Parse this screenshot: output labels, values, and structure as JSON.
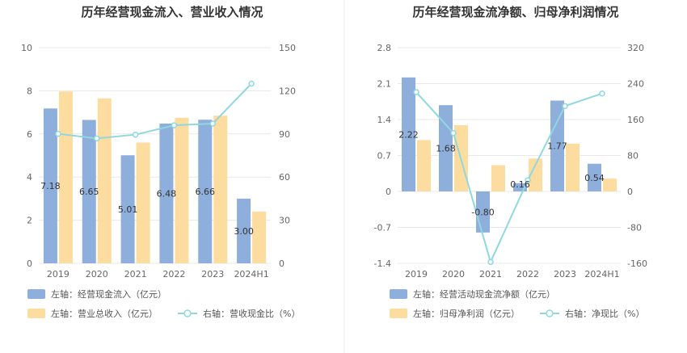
{
  "colors": {
    "bar1": "#8eaedc",
    "bar2": "#fddca0",
    "line": "#8fd8df",
    "grid": "#e8e8e8",
    "divider": "#eeeeee"
  },
  "chart_data": [
    {
      "type": "bar",
      "title": "历年经营现金流入、营业收入情况",
      "categories": [
        "2019",
        "2020",
        "2021",
        "2022",
        "2023",
        "2024H1"
      ],
      "left_axis": {
        "ticks": [
          "0",
          "2",
          "4",
          "6",
          "8",
          "10"
        ],
        "ylim": [
          0,
          10
        ]
      },
      "right_axis": {
        "ticks": [
          "0",
          "30",
          "60",
          "90",
          "120",
          "150"
        ],
        "ylim": [
          0,
          150
        ]
      },
      "series": [
        {
          "name": "左轴：经营现金流入（亿元）",
          "type": "bar",
          "axis": "left",
          "values": [
            7.18,
            6.65,
            5.01,
            6.48,
            6.66,
            3.0
          ],
          "labels": [
            "7.18",
            "6.65",
            "5.01",
            "6.48",
            "6.66",
            "3.00"
          ]
        },
        {
          "name": "左轴：营业总收入（亿元）",
          "type": "bar",
          "axis": "left",
          "values": [
            7.97,
            7.65,
            5.6,
            6.75,
            6.85,
            2.4
          ]
        },
        {
          "name": "右轴：营收现金比（%）",
          "type": "line",
          "axis": "right",
          "values": [
            90.1,
            86.9,
            89.5,
            96.0,
            97.2,
            125.0
          ]
        }
      ],
      "legend": "bottom-left"
    },
    {
      "type": "bar",
      "title": "历年经营现金流净额、归母净利润情况",
      "categories": [
        "2019",
        "2020",
        "2021",
        "2022",
        "2023",
        "2024H1"
      ],
      "left_axis": {
        "ticks": [
          "-1.4",
          "-0.7",
          "0",
          "0.7",
          "1.4",
          "2.1",
          "2.8"
        ],
        "ylim": [
          -1.4,
          2.8
        ]
      },
      "right_axis": {
        "ticks": [
          "-160",
          "-80",
          "0",
          "80",
          "160",
          "240",
          "320"
        ],
        "ylim": [
          -160,
          320
        ]
      },
      "series": [
        {
          "name": "左轴：经营活动现金流净额（亿元）",
          "type": "bar",
          "axis": "left",
          "values": [
            2.22,
            1.68,
            -0.8,
            0.16,
            1.77,
            0.54
          ],
          "labels": [
            "2.22",
            "1.68",
            "-0.80",
            "0.16",
            "1.77",
            "0.54"
          ]
        },
        {
          "name": "左轴：归母净利润（亿元）",
          "type": "bar",
          "axis": "left",
          "values": [
            1.0,
            1.29,
            0.51,
            0.64,
            0.93,
            0.25
          ]
        },
        {
          "name": "右轴：净现比（%）",
          "type": "line",
          "axis": "right",
          "values": [
            221,
            130,
            -157,
            25,
            190,
            218
          ]
        }
      ],
      "legend": "bottom-left"
    }
  ]
}
